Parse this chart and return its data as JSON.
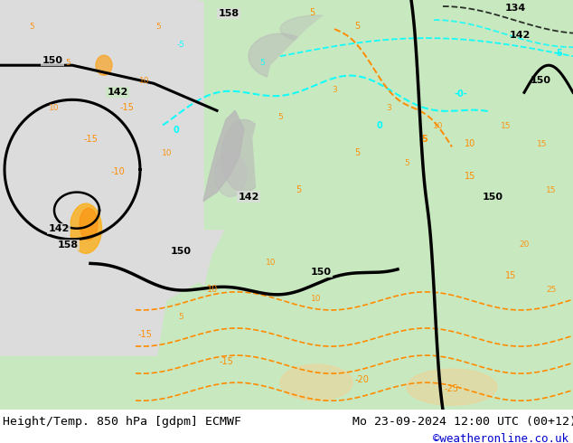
{
  "title_left": "Height/Temp. 850 hPa [gdpm] ECMWF",
  "title_right": "Mo 23-09-2024 12:00 UTC (00+12)",
  "copyright": "©weatheronline.co.uk",
  "title_color": "#000000",
  "copyright_color": "#0000cc",
  "background_color": "#ffffff",
  "bottom_bar_color": "#f0f0f0",
  "figsize": [
    6.34,
    4.9
  ],
  "dpi": 100,
  "font_size": 9.5,
  "land_color": "#c8e8c0",
  "sea_color": "#e8e8e8",
  "grey_land_color": "#b8b8b8",
  "dark_grey_color": "#989898"
}
